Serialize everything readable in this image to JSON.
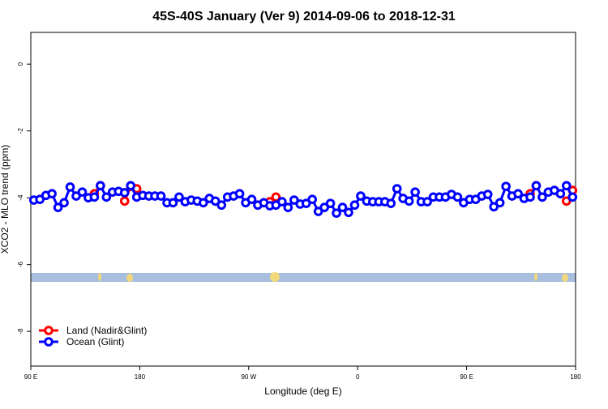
{
  "chart_data": {
    "type": "line",
    "title": "45S-40S January (Ver 9)   2014-09-06 to 2018-12-31",
    "x_label": "Longitude (deg E)",
    "y_label": "XCO2 - MLO trend (ppm)",
    "xlim": [
      90,
      540
    ],
    "ylim": [
      -9.04,
      0.95
    ],
    "xticks": [
      {
        "value": 90,
        "label": "90 E"
      },
      180,
      {
        "value": 270,
        "label": "90 W"
      },
      {
        "value": 360,
        "label": "0"
      },
      {
        "value": 450,
        "label": "90 E"
      },
      {
        "value": 540,
        "label": "180"
      }
    ],
    "yticks": [
      0,
      -2,
      -4,
      -6,
      -8
    ],
    "legend": "bottom-left",
    "x": [
      92.5,
      97.5,
      102.5,
      107.5,
      112.5,
      117.5,
      122.5,
      127.5,
      132.5,
      137.5,
      142.5,
      147.5,
      152.5,
      157.5,
      162.5,
      167.5,
      172.5,
      177.5,
      182.5,
      187.5,
      192.5,
      197.5,
      202.5,
      207.5,
      212.5,
      217.5,
      222.5,
      227.5,
      232.5,
      237.5,
      242.5,
      247.5,
      252.5,
      257.5,
      262.5,
      267.5,
      272.5,
      277.5,
      282.5,
      287.5,
      292.5,
      297.5,
      302.5,
      307.5,
      312.5,
      317.5,
      322.5,
      327.5,
      332.5,
      337.5,
      342.5,
      347.5,
      352.5,
      357.5,
      362.5,
      367.5,
      372.5,
      377.5,
      382.5,
      387.5,
      392.5,
      397.5,
      402.5,
      407.5,
      412.5,
      417.5,
      422.5,
      427.5,
      432.5,
      437.5,
      442.5,
      447.5,
      452.5,
      457.5,
      462.5,
      467.5,
      472.5,
      477.5,
      482.5,
      487.5,
      492.5,
      497.5,
      502.5,
      507.5,
      512.5,
      517.5,
      522.5,
      527.5,
      532.5,
      537.5
    ],
    "series": [
      {
        "name": "Land (Nadir&Glint)",
        "color": "#ff0000",
        "values": [
          null,
          null,
          null,
          null,
          null,
          null,
          null,
          null,
          null,
          null,
          -3.88,
          -3.64,
          null,
          null,
          null,
          -4.1,
          -3.66,
          -3.73,
          null,
          null,
          null,
          null,
          null,
          null,
          null,
          null,
          null,
          null,
          null,
          null,
          null,
          null,
          null,
          null,
          null,
          null,
          null,
          null,
          null,
          -4.12,
          -3.98,
          null,
          null,
          null,
          null,
          null,
          null,
          null,
          null,
          null,
          null,
          null,
          null,
          null,
          null,
          null,
          null,
          null,
          null,
          null,
          null,
          null,
          null,
          null,
          null,
          null,
          null,
          null,
          null,
          null,
          null,
          null,
          null,
          null,
          null,
          null,
          null,
          null,
          null,
          null,
          null,
          null,
          -3.88,
          -3.64,
          null,
          null,
          null,
          null,
          -4.1,
          -3.78
        ]
      },
      {
        "name": "Ocean (Glint)",
        "color": "#0000ff",
        "values": [
          -4.07,
          -4.05,
          -3.93,
          -3.88,
          -4.29,
          -4.15,
          -3.68,
          -3.95,
          -3.83,
          -4.0,
          -3.98,
          -3.64,
          -3.98,
          -3.83,
          -3.81,
          -3.85,
          -3.64,
          -3.98,
          -3.93,
          -3.95,
          -3.95,
          -3.95,
          -4.15,
          -4.15,
          -3.98,
          -4.12,
          -4.07,
          -4.1,
          -4.15,
          -4.02,
          -4.1,
          -4.22,
          -3.98,
          -3.95,
          -3.88,
          -4.15,
          -4.05,
          -4.22,
          -4.15,
          -4.24,
          -4.22,
          -4.12,
          -4.29,
          -4.07,
          -4.19,
          -4.17,
          -4.05,
          -4.41,
          -4.29,
          -4.17,
          -4.46,
          -4.29,
          -4.44,
          -4.22,
          -3.95,
          -4.1,
          -4.12,
          -4.12,
          -4.12,
          -4.17,
          -3.73,
          -4.02,
          -4.1,
          -3.83,
          -4.12,
          -4.12,
          -3.98,
          -3.98,
          -3.98,
          -3.9,
          -3.98,
          -4.15,
          -4.05,
          -4.05,
          -3.95,
          -3.9,
          -4.27,
          -4.15,
          -3.66,
          -3.95,
          -3.88,
          -4.02,
          -3.98,
          -3.64,
          -3.98,
          -3.83,
          -3.78,
          -3.88,
          -3.64,
          -3.98
        ]
      }
    ]
  }
}
